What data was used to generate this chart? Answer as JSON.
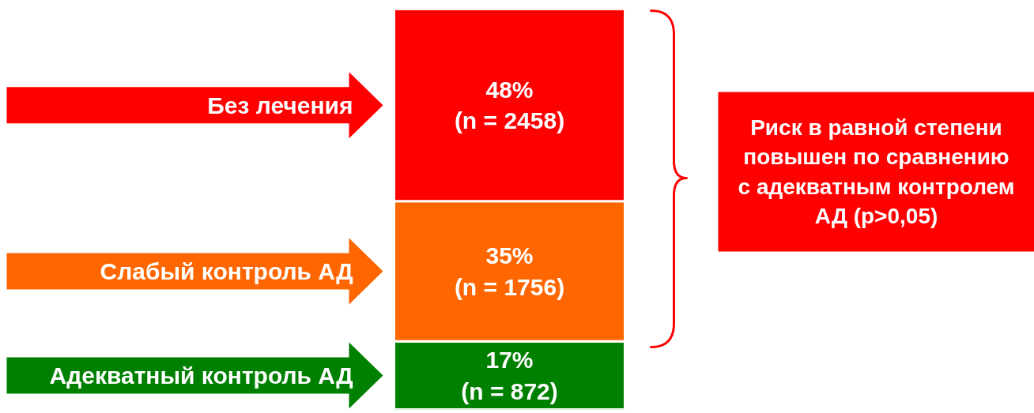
{
  "chart_data": {
    "type": "bar",
    "stacked": true,
    "categories": [
      null
    ],
    "ylim": [
      0,
      100
    ],
    "tick_labels": false,
    "series": [
      {
        "name": "Адекватный контроль АД",
        "color": "#008000",
        "values": [
          17
        ],
        "value_labels": [
          "17%\n(n = 872)"
        ]
      },
      {
        "name": "Слабый контроль АД",
        "color": "#ff6600",
        "values": [
          35
        ],
        "value_labels": [
          "35%\n(n = 1756)"
        ]
      },
      {
        "name": "Без лечения",
        "color": "#ff0000",
        "values": [
          48
        ],
        "value_labels": [
          "48%\n(n = 2458)"
        ]
      }
    ],
    "annotations": [
      "Риск в равной степени\nповышен по сравнению\nс адекватным контролем\nАД (p>0,05)"
    ]
  }
}
